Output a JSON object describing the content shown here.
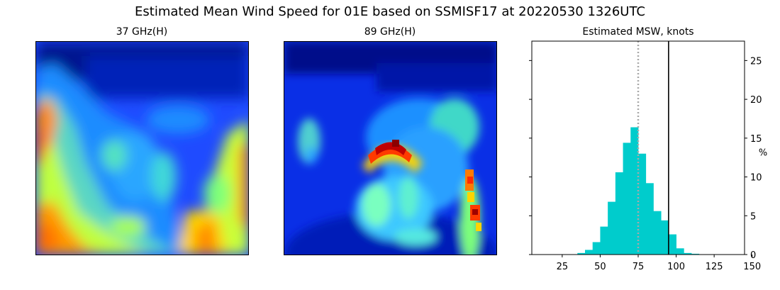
{
  "figure": {
    "title": "Estimated Mean Wind Speed for 01E based on SSMISF17 at 20220530 1326UTC"
  },
  "panels": {
    "left_title": "37 GHz(H)",
    "middle_title": "89 GHz(H)",
    "right_title": "Estimated MSW, knots"
  },
  "colors": {
    "hist_bar": "#00cccc",
    "mean_line": "#a9a9a9",
    "current_line": "#000000"
  },
  "chart_data": [
    {
      "type": "heatmap",
      "title": "37 GHz(H)",
      "colormap": "jet",
      "axes": "hidden"
    },
    {
      "type": "heatmap",
      "title": "89 GHz(H)",
      "colormap": "jet",
      "axes": "hidden"
    },
    {
      "type": "bar",
      "title": "Estimated MSW, knots",
      "xlabel": "",
      "ylabel": "%",
      "xlim": [
        5,
        145
      ],
      "ylim": [
        0,
        27.5
      ],
      "xticks": [
        25,
        50,
        75,
        100,
        125,
        150
      ],
      "yticks": [
        0,
        5,
        10,
        15,
        20,
        25
      ],
      "bin_width": 5,
      "bins_start": [
        35,
        40,
        45,
        50,
        55,
        60,
        65,
        70,
        75,
        80,
        85,
        90,
        95,
        100,
        105,
        110
      ],
      "values": [
        0.2,
        0.6,
        1.6,
        3.6,
        6.8,
        10.6,
        14.4,
        16.4,
        13.0,
        9.2,
        5.6,
        4.4,
        2.6,
        0.8,
        0.2,
        0.1
      ],
      "mean_line_x": 75,
      "current_line_x": 95,
      "y_axis_side": "right"
    }
  ]
}
